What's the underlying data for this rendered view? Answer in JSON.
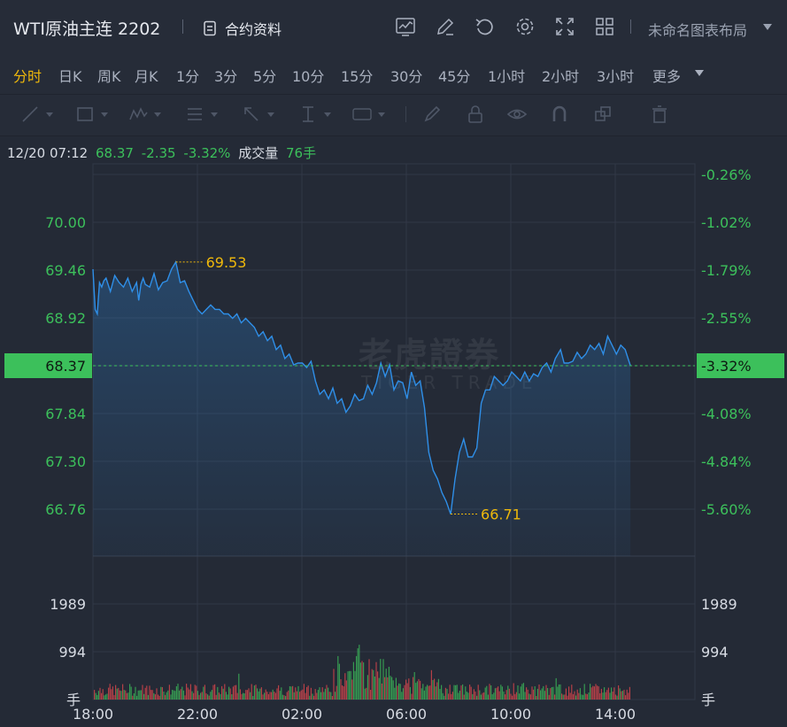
{
  "header": {
    "title": "WTI原油主连 2202",
    "contract_info": "合约资料",
    "layout_name": "未命名图表布局",
    "icons": [
      "chart-template-icon",
      "edit-icon",
      "undo-icon",
      "settings-icon",
      "fullscreen-icon",
      "grid-layout-icon"
    ]
  },
  "timeframes": [
    {
      "label": "分时",
      "active": true
    },
    {
      "label": "日K"
    },
    {
      "label": "周K"
    },
    {
      "label": "月K"
    },
    {
      "label": "1分"
    },
    {
      "label": "3分"
    },
    {
      "label": "5分"
    },
    {
      "label": "10分"
    },
    {
      "label": "15分"
    },
    {
      "label": "30分"
    },
    {
      "label": "45分"
    },
    {
      "label": "1小时"
    },
    {
      "label": "2小时"
    },
    {
      "label": "3小时"
    },
    {
      "label": "更多"
    }
  ],
  "drawing_tools": [
    "trend-line-icon",
    "rectangle-icon",
    "wave-icon",
    "fib-icon",
    "arrow-icon",
    "vertical-line-icon",
    "measure-icon",
    "brush-icon",
    "lock-icon",
    "eye-icon",
    "magnet-icon",
    "layers-icon",
    "trash-icon"
  ],
  "info": {
    "datetime": "12/20 07:12",
    "price": "68.37",
    "change": "-2.35",
    "change_pct": "-3.32%",
    "volume_label": "成交量",
    "volume": "76手"
  },
  "watermark": {
    "cn": "老虎證券",
    "en": "TIGER TRADE"
  },
  "colors": {
    "up": "#3cc05b",
    "down": "#e5484d",
    "line": "#2f8fe8",
    "marker": "#f0b90b",
    "bg": "#242a36"
  },
  "chart_data": {
    "type": "line",
    "price_axis_left": [
      "70.00",
      "69.46",
      "68.92",
      "68.37",
      "67.84",
      "67.30",
      "66.76"
    ],
    "pct_axis_right": [
      "-0.26%",
      "-1.02%",
      "-1.79%",
      "-2.55%",
      "-3.32%",
      "-4.08%",
      "-4.84%",
      "-5.60%"
    ],
    "current_price": "68.37",
    "current_pct": "-3.32%",
    "high_label": "69.53",
    "low_label": "66.71",
    "volume_axis": [
      "1989",
      "994"
    ],
    "volume_unit": "手",
    "x_ticks": [
      "18:00",
      "22:00",
      "02:00",
      "06:00",
      "10:00",
      "14:00"
    ],
    "ylim": [
      66.22,
      70.55
    ],
    "xlim": [
      0,
      1380
    ],
    "series": [
      {
        "x": [
          0,
          5,
          10,
          15,
          20,
          25,
          30,
          40,
          50,
          60,
          70,
          80,
          90,
          100,
          105,
          110,
          115,
          120,
          130,
          140,
          150,
          160,
          170,
          180,
          190,
          200,
          210,
          220,
          230,
          240,
          250,
          260,
          270,
          280,
          290,
          300,
          310,
          320,
          330,
          340,
          350,
          360,
          370,
          380,
          390,
          400,
          410,
          420,
          430,
          440,
          450,
          460,
          470,
          480,
          490,
          500,
          510,
          520,
          530,
          540,
          550,
          560,
          570,
          580,
          590,
          600,
          610,
          620,
          630,
          640,
          650,
          660,
          670,
          680,
          690,
          700,
          710,
          720,
          730,
          740,
          750,
          760,
          770,
          780,
          790,
          800,
          810,
          820,
          830,
          840,
          850,
          860,
          870,
          880,
          890,
          900,
          910,
          920,
          930,
          940,
          950,
          960,
          970,
          980,
          990,
          1000,
          1010,
          1020,
          1030,
          1040,
          1050,
          1060,
          1072,
          1080,
          1090,
          1100,
          1110,
          1120,
          1130,
          1140,
          1150,
          1160,
          1170,
          1180,
          1190,
          1200,
          1210,
          1220,
          1232
        ],
        "y": [
          69.45,
          69.0,
          68.95,
          69.3,
          69.25,
          69.32,
          69.35,
          69.2,
          69.38,
          69.3,
          69.25,
          69.35,
          69.2,
          69.3,
          69.1,
          69.28,
          69.35,
          69.28,
          69.25,
          69.4,
          69.22,
          69.3,
          69.32,
          69.45,
          69.53,
          69.3,
          69.32,
          69.2,
          69.1,
          69.0,
          68.95,
          69.0,
          69.05,
          69.0,
          69.0,
          68.95,
          68.95,
          68.9,
          68.95,
          68.85,
          68.9,
          68.85,
          68.8,
          68.7,
          68.75,
          68.65,
          68.7,
          68.55,
          68.6,
          68.45,
          68.5,
          68.38,
          68.4,
          68.4,
          68.35,
          68.42,
          68.2,
          68.05,
          68.1,
          68.0,
          68.12,
          67.95,
          68.0,
          67.85,
          67.92,
          68.05,
          67.98,
          68.0,
          68.15,
          68.05,
          68.18,
          68.4,
          68.25,
          68.38,
          68.1,
          68.2,
          68.18,
          68.0,
          68.3,
          68.15,
          68.2,
          67.9,
          67.4,
          67.2,
          67.1,
          66.95,
          66.85,
          66.71,
          67.1,
          67.4,
          67.55,
          67.35,
          67.35,
          67.45,
          67.95,
          68.1,
          68.1,
          68.25,
          68.2,
          68.15,
          68.2,
          68.3,
          68.25,
          68.2,
          68.3,
          68.2,
          68.28,
          68.25,
          68.35,
          68.4,
          68.3,
          68.45,
          68.55,
          68.4,
          68.4,
          68.42,
          68.52,
          68.45,
          68.5,
          68.6,
          68.55,
          68.62,
          68.5,
          68.7,
          68.6,
          68.5,
          68.6,
          68.55,
          68.37
        ]
      }
    ]
  }
}
